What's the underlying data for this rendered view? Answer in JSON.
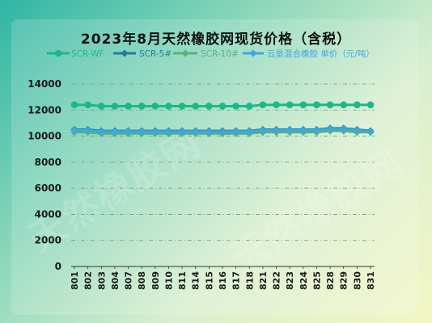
{
  "chart_data": {
    "type": "line",
    "title": "2023年8月天然橡胶网现货价格（含税）",
    "categories": [
      "801",
      "802",
      "803",
      "804",
      "807",
      "808",
      "809",
      "810",
      "811",
      "814",
      "815",
      "816",
      "817",
      "818",
      "821",
      "822",
      "823",
      "824",
      "825",
      "828",
      "829",
      "830",
      "831"
    ],
    "ylim": [
      0,
      14000
    ],
    "yticks": [
      0,
      2000,
      4000,
      6000,
      8000,
      10000,
      12000,
      14000
    ],
    "grid": true,
    "legend_position": "top",
    "series": [
      {
        "name": "SCR-WF",
        "color": "#1bb88a",
        "marker": "circle",
        "values": [
          12400,
          12400,
          12300,
          12300,
          12300,
          12300,
          12300,
          12300,
          12300,
          12300,
          12300,
          12300,
          12300,
          12300,
          12400,
          12400,
          12400,
          12400,
          12400,
          12400,
          12400,
          12400,
          12400
        ]
      },
      {
        "name": "SCR-5#",
        "color": "#1f7e96",
        "marker": "diamond",
        "values": [
          10500,
          10500,
          10400,
          10400,
          10400,
          10400,
          10400,
          10400,
          10400,
          10400,
          10400,
          10400,
          10400,
          10400,
          10500,
          10500,
          10500,
          10500,
          10500,
          10600,
          10600,
          10500,
          10400
        ]
      },
      {
        "name": "SCR-10#",
        "color": "#5ab07a",
        "marker": "diamond",
        "values": [
          10300,
          10300,
          10200,
          10200,
          10200,
          10200,
          10200,
          10200,
          10200,
          10200,
          10200,
          10200,
          10200,
          10200,
          10300,
          10300,
          10300,
          10300,
          10300,
          10400,
          10400,
          10300,
          10300
        ]
      },
      {
        "name": "云垦混合橡胶 单价（元/吨）",
        "color": "#3aa7e6",
        "marker": "diamond",
        "values": [
          10450,
          10450,
          10350,
          10350,
          10350,
          10350,
          10350,
          10350,
          10350,
          10350,
          10350,
          10350,
          10350,
          10350,
          10450,
          10450,
          10450,
          10450,
          10450,
          10550,
          10550,
          10450,
          10350
        ]
      }
    ]
  },
  "watermark_text": "天然橡胶网"
}
